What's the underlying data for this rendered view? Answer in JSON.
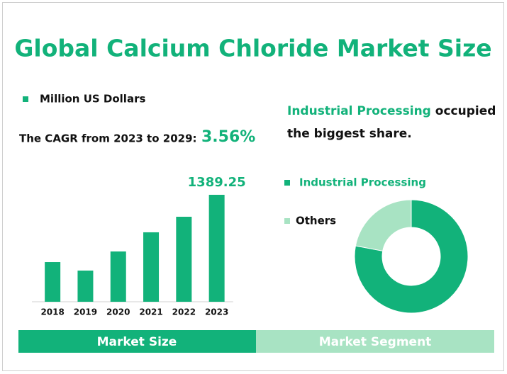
{
  "title": "Global Calcium Chloride Market Size",
  "cagr_label": "The CAGR from 2023 to 2029:",
  "cagr_value": "3.56%",
  "share_text": [
    "Industrial Processing",
    "occupied",
    "the biggest share."
  ],
  "tabs": [
    "Market Size",
    "Market Segment"
  ],
  "chart_data": [
    {
      "type": "bar",
      "categories": [
        "2018",
        "2019",
        "2020",
        "2021",
        "2022",
        "2023"
      ],
      "series": [
        {
          "name": "Million US Dollars",
          "color": "#12b27a",
          "values": [
            515,
            405,
            653,
            902,
            1104,
            1389.25
          ],
          "value_labels": [
            null,
            null,
            null,
            null,
            null,
            "1389.25"
          ]
        }
      ]
    },
    {
      "type": "pie",
      "categories": [
        "Industrial Processing",
        "Others"
      ],
      "values": [
        78,
        22
      ],
      "colors": [
        "#12b27a",
        "#a8e3c3"
      ]
    }
  ]
}
